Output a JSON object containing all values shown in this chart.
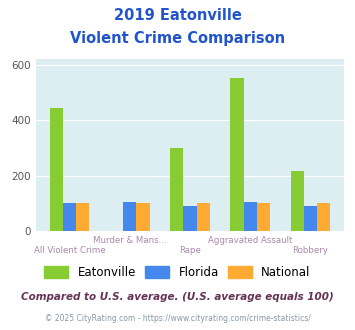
{
  "title_line1": "2019 Eatonville",
  "title_line2": "Violent Crime Comparison",
  "categories": [
    "All Violent Crime",
    "Murder & Mans...",
    "Rape",
    "Aggravated Assault",
    "Robbery"
  ],
  "top_labels": [
    "",
    "Murder & Mans...",
    "",
    "Aggravated Assault",
    ""
  ],
  "bot_labels": [
    "All Violent Crime",
    "",
    "Rape",
    "",
    "Robbery"
  ],
  "eatonville": [
    445,
    0,
    300,
    553,
    215
  ],
  "florida": [
    100,
    105,
    90,
    105,
    90
  ],
  "national": [
    100,
    100,
    100,
    100,
    100
  ],
  "colors": {
    "eatonville": "#88cc33",
    "florida": "#4488ee",
    "national": "#ffaa33"
  },
  "ylim": [
    0,
    620
  ],
  "yticks": [
    0,
    200,
    400,
    600
  ],
  "legend_labels": [
    "Eatonville",
    "Florida",
    "National"
  ],
  "footnote1": "Compared to U.S. average. (U.S. average equals 100)",
  "footnote2": "© 2025 CityRating.com - https://www.cityrating.com/crime-statistics/",
  "bg_color": "#ddeef3",
  "title_color": "#2255cc",
  "label_color": "#aa88aa",
  "footnote1_color": "#663355",
  "footnote2_color": "#8899aa"
}
